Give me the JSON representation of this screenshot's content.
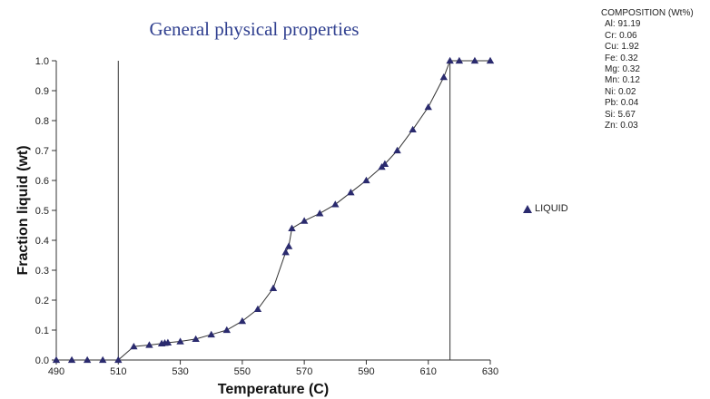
{
  "chart_data": {
    "type": "line",
    "title": "General physical properties",
    "xlabel": "Temperature (C)",
    "ylabel": "Fraction liquid (wt)",
    "xlim": [
      490,
      630
    ],
    "ylim": [
      0.0,
      1.0
    ],
    "x_ticks": [
      "490",
      "510",
      "530",
      "550",
      "570",
      "590",
      "610",
      "630"
    ],
    "y_ticks": [
      "0.0",
      "0.1",
      "0.2",
      "0.3",
      "0.4",
      "0.5",
      "0.6",
      "0.7",
      "0.8",
      "0.9",
      "1.0"
    ],
    "grid": false,
    "legend_position": "right",
    "vertical_lines": [
      510,
      617
    ],
    "series": [
      {
        "name": "LIQUID",
        "color": "#2a2a6e",
        "marker": "triangle",
        "points": [
          [
            490,
            0.0
          ],
          [
            495,
            0.0
          ],
          [
            500,
            0.0
          ],
          [
            505,
            0.0
          ],
          [
            510,
            0.0
          ],
          [
            515,
            0.045
          ],
          [
            520,
            0.05
          ],
          [
            524,
            0.055
          ],
          [
            525,
            0.057
          ],
          [
            526,
            0.058
          ],
          [
            530,
            0.062
          ],
          [
            535,
            0.07
          ],
          [
            540,
            0.085
          ],
          [
            545,
            0.1
          ],
          [
            550,
            0.13
          ],
          [
            555,
            0.17
          ],
          [
            560,
            0.24
          ],
          [
            564,
            0.36
          ],
          [
            565,
            0.38
          ],
          [
            566,
            0.44
          ],
          [
            570,
            0.465
          ],
          [
            575,
            0.49
          ],
          [
            580,
            0.52
          ],
          [
            585,
            0.56
          ],
          [
            590,
            0.6
          ],
          [
            595,
            0.645
          ],
          [
            596,
            0.655
          ],
          [
            600,
            0.7
          ],
          [
            605,
            0.77
          ],
          [
            610,
            0.845
          ],
          [
            615,
            0.945
          ],
          [
            617,
            1.0
          ],
          [
            620,
            1.0
          ],
          [
            625,
            1.0
          ],
          [
            630,
            1.0
          ]
        ]
      }
    ]
  },
  "composition": {
    "heading": "COMPOSITION (Wt%)",
    "items": [
      "Al: 91.19",
      "Cr: 0.06",
      "Cu: 1.92",
      "Fe: 0.32",
      "Mg: 0.32",
      "Mn: 0.12",
      "Ni: 0.02",
      "Pb: 0.04",
      "Si: 5.67",
      "Zn: 0.03"
    ]
  }
}
